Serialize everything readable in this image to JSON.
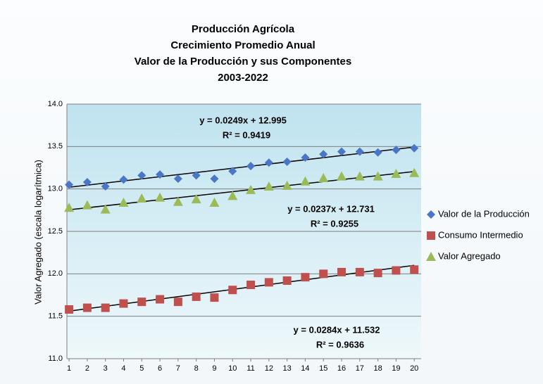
{
  "chart_data": {
    "type": "scatter",
    "title": [
      "Producción  Agrícola",
      "Crecimiento Promedio Anual",
      "Valor de la Producción  y sus Componentes",
      "2003-2022"
    ],
    "y_label": "Valor Agregado (escala logarítmica)",
    "x": [
      1,
      2,
      3,
      4,
      5,
      6,
      7,
      8,
      9,
      10,
      11,
      12,
      13,
      14,
      15,
      16,
      17,
      18,
      19,
      20
    ],
    "xlim": [
      0.88,
      20.38
    ],
    "xticks": [
      1,
      2,
      3,
      4,
      5,
      6,
      7,
      8,
      9,
      10,
      11,
      12,
      13,
      14,
      15,
      16,
      17,
      18,
      19,
      20
    ],
    "ylim": [
      11.0,
      14.0
    ],
    "yticks": [
      {
        "value": 11.0,
        "label": "11.0"
      },
      {
        "value": 11.5,
        "label": "11.5"
      },
      {
        "value": 12.0,
        "label": "12.0"
      },
      {
        "value": 12.5,
        "label": "12.5"
      },
      {
        "value": 13.0,
        "label": "13.0"
      },
      {
        "value": 13.5,
        "label": "13.5"
      },
      {
        "value": 14.0,
        "label": "14.0"
      }
    ],
    "grid": true,
    "legend": "right",
    "series": [
      {
        "name": "Valor de la Producción",
        "color": "#4a76c6",
        "marker": "diamond",
        "values": [
          13.05,
          13.08,
          13.03,
          13.11,
          13.16,
          13.17,
          13.12,
          13.16,
          13.12,
          13.21,
          13.27,
          13.31,
          13.32,
          13.37,
          13.41,
          13.44,
          13.44,
          13.43,
          13.46,
          13.48
        ],
        "trendline": {
          "equation": "y = 0.0249x + 12.995",
          "r2": "R² = 0.9419",
          "slope": 0.0249,
          "intercept": 12.995
        }
      },
      {
        "name": "Consumo Intermedio",
        "color": "#c0504d",
        "marker": "square",
        "values": [
          11.58,
          11.6,
          11.6,
          11.65,
          11.67,
          11.7,
          11.67,
          11.73,
          11.72,
          11.81,
          11.87,
          11.9,
          11.92,
          11.96,
          12.0,
          12.02,
          12.02,
          12.01,
          12.04,
          12.05
        ],
        "trendline": {
          "equation": "y = 0.0284x + 11.532",
          "r2": "R² = 0.9636",
          "slope": 0.0284,
          "intercept": 11.532
        }
      },
      {
        "name": "Valor Agregado",
        "color": "#9bbb59",
        "marker": "triangle",
        "values": [
          12.78,
          12.81,
          12.76,
          12.84,
          12.89,
          12.9,
          12.85,
          12.88,
          12.84,
          12.92,
          12.99,
          13.03,
          13.04,
          13.09,
          13.13,
          13.15,
          13.15,
          13.15,
          13.18,
          13.19
        ],
        "trendline": {
          "equation": "y = 0.0237x + 12.731",
          "r2": "R² = 0.9255",
          "slope": 0.0237,
          "intercept": 12.731
        }
      }
    ]
  }
}
